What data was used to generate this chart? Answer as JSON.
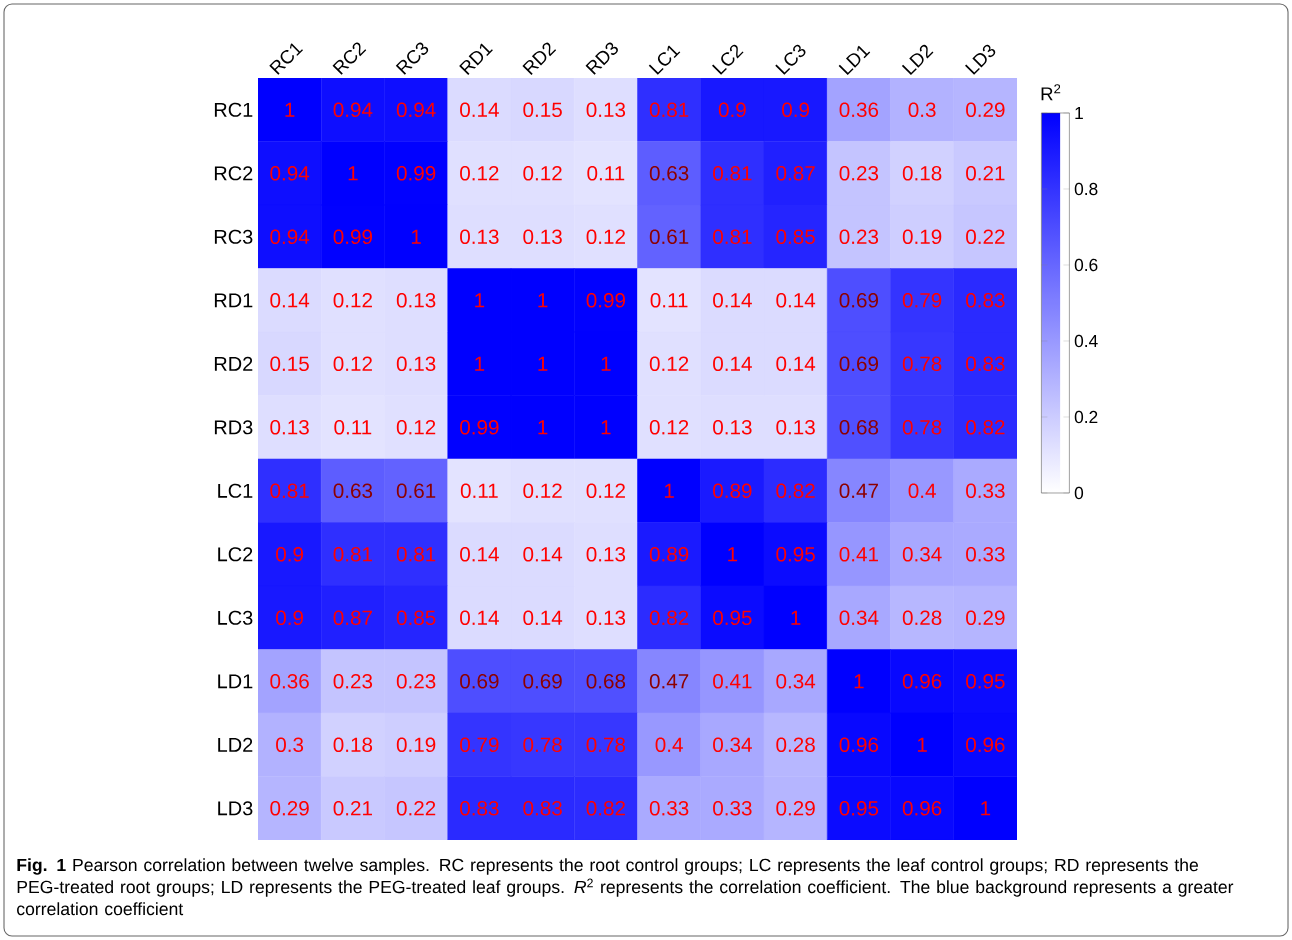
{
  "chart_data": {
    "type": "heatmap",
    "categories": [
      "RC1",
      "RC2",
      "RC3",
      "RD1",
      "RD2",
      "RD3",
      "LC1",
      "LC2",
      "LC3",
      "LD1",
      "LD2",
      "LD3"
    ],
    "y_categories": [
      "RC1",
      "RC2",
      "RC3",
      "RD1",
      "RD2",
      "RD3",
      "LC1",
      "LC2",
      "LC3",
      "LD1",
      "LD2",
      "LD3"
    ],
    "cells": [
      [
        1,
        0.94,
        0.94,
        0.14,
        0.15,
        0.13,
        0.81,
        0.9,
        0.9,
        0.36,
        0.3,
        0.29
      ],
      [
        0.94,
        1,
        0.99,
        0.12,
        0.12,
        0.11,
        0.63,
        0.81,
        0.87,
        0.23,
        0.18,
        0.21
      ],
      [
        0.94,
        0.99,
        1,
        0.13,
        0.13,
        0.12,
        0.61,
        0.81,
        0.85,
        0.23,
        0.19,
        0.22
      ],
      [
        0.14,
        0.12,
        0.13,
        1,
        1,
        0.99,
        0.11,
        0.14,
        0.14,
        0.69,
        0.79,
        0.83
      ],
      [
        0.15,
        0.12,
        0.13,
        1,
        1,
        1,
        0.12,
        0.14,
        0.14,
        0.69,
        0.78,
        0.83
      ],
      [
        0.13,
        0.11,
        0.12,
        0.99,
        1,
        1,
        0.12,
        0.13,
        0.13,
        0.68,
        0.78,
        0.82
      ],
      [
        0.81,
        0.63,
        0.61,
        0.11,
        0.12,
        0.12,
        1,
        0.89,
        0.82,
        0.47,
        0.4,
        0.33
      ],
      [
        0.9,
        0.81,
        0.81,
        0.14,
        0.14,
        0.13,
        0.89,
        1,
        0.95,
        0.41,
        0.34,
        0.33
      ],
      [
        0.9,
        0.87,
        0.85,
        0.14,
        0.14,
        0.13,
        0.82,
        0.95,
        1,
        0.34,
        0.28,
        0.29
      ],
      [
        0.36,
        0.23,
        0.23,
        0.69,
        0.69,
        0.68,
        0.47,
        0.41,
        0.34,
        1,
        0.96,
        0.95
      ],
      [
        0.3,
        0.18,
        0.19,
        0.79,
        0.78,
        0.78,
        0.4,
        0.34,
        0.28,
        0.96,
        1,
        0.96
      ],
      [
        0.29,
        0.21,
        0.22,
        0.83,
        0.83,
        0.82,
        0.33,
        0.33,
        0.29,
        0.95,
        0.96,
        1
      ]
    ],
    "data_labels": true,
    "clabel": "R$^{2}$",
    "clim": [
      0,
      1
    ],
    "cticks": [
      0,
      0.2,
      0.4,
      0.6,
      0.8,
      1
    ],
    "annotations": [
      "**Fig. 1** Pearson correlation between twelve samples. RC represents the root control groups; LC represents the leaf control groups; RD represents the PEG-treated root groups; LD represents the PEG-treated leaf groups. *R*$^{2}$ represents the correlation coefficient. The blue background represents a greater correlation coefficient"
    ]
  }
}
